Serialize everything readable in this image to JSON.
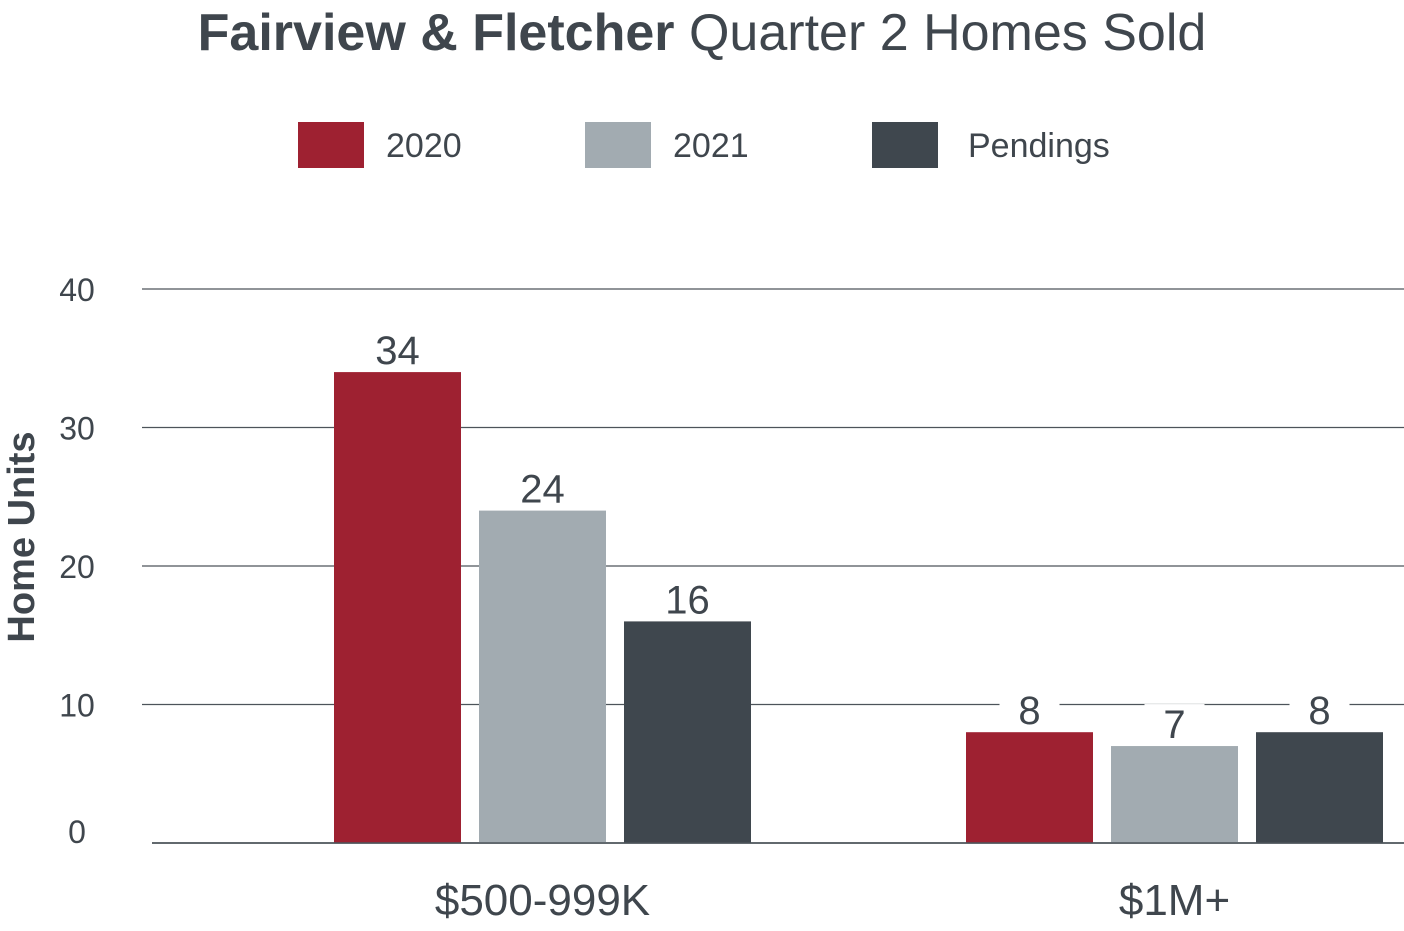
{
  "title": {
    "bold": "Fairview & Fletcher",
    "rest": "Quarter 2 Homes Sold"
  },
  "chart_data": {
    "type": "bar",
    "categories": [
      "$500-999K",
      "$1M+"
    ],
    "series": [
      {
        "name": "2020",
        "values": [
          34,
          8
        ],
        "color": "#9e2131"
      },
      {
        "name": "2021",
        "values": [
          24,
          7
        ],
        "color": "#a2abb1"
      },
      {
        "name": "Pendings",
        "values": [
          16,
          8
        ],
        "color": "#3f474e"
      }
    ],
    "xlabel": "",
    "ylabel": "Home Units",
    "ylim": [
      0,
      40
    ],
    "yticks": [
      0,
      10,
      20,
      30,
      40
    ],
    "grid": true,
    "legend": "top-center"
  }
}
